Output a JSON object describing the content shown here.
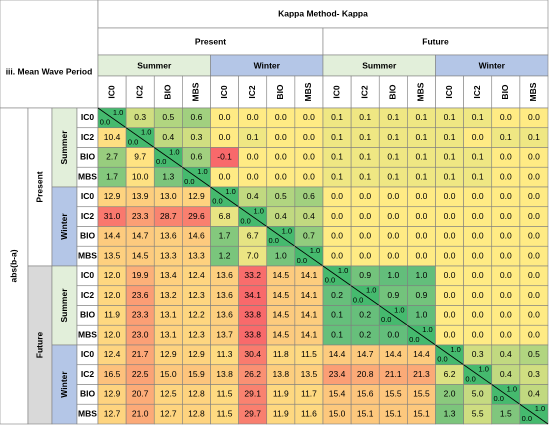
{
  "title": "iii. Mean Wave Period",
  "method": "Kappa Method- Kappa",
  "row_axis_label": "abs(b-a)",
  "column_periods": [
    "Present",
    "Future"
  ],
  "column_seasons": [
    "Summer",
    "Winter",
    "Summer",
    "Winter"
  ],
  "column_headers": [
    "IC0",
    "IC2",
    "BIO",
    "MBS",
    "IC0",
    "IC2",
    "BIO",
    "MBS",
    "IC0",
    "IC2",
    "BIO",
    "MBS",
    "IC0",
    "IC2",
    "BIO",
    "MBS"
  ],
  "row_periods": [
    "Present",
    "Future"
  ],
  "row_seasons": [
    "Summer",
    "Winter",
    "Summer",
    "Winter"
  ],
  "row_headers": [
    "IC0",
    "IC2",
    "BIO",
    "MBS",
    "IC0",
    "IC2",
    "BIO",
    "MBS",
    "IC0",
    "IC2",
    "BIO",
    "MBS",
    "IC0",
    "IC2",
    "BIO",
    "MBS"
  ],
  "table": {
    "rows": [
      [
        {
          "upper": "1.0",
          "lower": "0.0"
        },
        "0.3",
        "0.5",
        "0.6",
        "0.0",
        "0.0",
        "0.0",
        "0.0",
        "0.1",
        "0.1",
        "0.1",
        "0.1",
        "0.1",
        "0.1",
        "0.0",
        "0.0"
      ],
      [
        "10.4",
        {
          "upper": "1.0",
          "lower": "0.0"
        },
        "0.4",
        "0.3",
        "0.0",
        "0.1",
        "0.0",
        "0.0",
        "0.1",
        "0.1",
        "0.1",
        "0.1",
        "0.1",
        "0.0",
        "0.1",
        "0.1"
      ],
      [
        "2.7",
        "9.7",
        {
          "upper": "1.0",
          "lower": "0.0"
        },
        "0.6",
        "-0.1",
        "0.0",
        "0.0",
        "0.0",
        "0.1",
        "0.1",
        "0.1",
        "0.1",
        "0.1",
        "0.1",
        "0.0",
        "0.0"
      ],
      [
        "1.7",
        "10.0",
        "1.3",
        {
          "upper": "1.0",
          "lower": "0.0"
        },
        "0.0",
        "0.0",
        "0.0",
        "0.0",
        "0.1",
        "0.1",
        "0.1",
        "0.1",
        "0.1",
        "0.1",
        "0.0",
        "0.0"
      ],
      [
        "12.9",
        "13.9",
        "13.0",
        "12.9",
        {
          "upper": "1.0",
          "lower": "0.0"
        },
        "0.4",
        "0.5",
        "0.6",
        "0.0",
        "0.0",
        "0.0",
        "0.0",
        "0.0",
        "0.0",
        "0.0",
        "0.0"
      ],
      [
        "31.0",
        "23.3",
        "28.7",
        "29.6",
        "6.8",
        {
          "upper": "1.0",
          "lower": "0.0"
        },
        "0.4",
        "0.4",
        "0.0",
        "0.0",
        "0.0",
        "0.0",
        "0.0",
        "0.0",
        "0.0",
        "0.0"
      ],
      [
        "14.4",
        "14.7",
        "13.6",
        "14.6",
        "1.7",
        "6.7",
        {
          "upper": "1.0",
          "lower": "0.0"
        },
        "0.7",
        "0.0",
        "0.0",
        "0.0",
        "0.0",
        "0.0",
        "0.0",
        "0.0",
        "0.0"
      ],
      [
        "13.5",
        "14.5",
        "13.3",
        "13.3",
        "1.2",
        "7.0",
        "1.0",
        {
          "upper": "1.0",
          "lower": "0.0"
        },
        "0.0",
        "0.0",
        "0.0",
        "0.0",
        "0.0",
        "0.0",
        "0.0",
        "0.0"
      ],
      [
        "12.0",
        "19.9",
        "13.4",
        "12.4",
        "13.6",
        "33.2",
        "14.5",
        "14.1",
        {
          "upper": "1.0",
          "lower": "0.0"
        },
        "0.9",
        "1.0",
        "1.0",
        "0.0",
        "0.0",
        "0.0",
        "0.0"
      ],
      [
        "12.0",
        "23.6",
        "13.2",
        "12.3",
        "13.6",
        "34.1",
        "14.5",
        "14.1",
        "0.2",
        {
          "upper": "1.0",
          "lower": "0.0"
        },
        "0.9",
        "0.9",
        "0.0",
        "0.0",
        "0.0",
        "0.0"
      ],
      [
        "11.9",
        "23.3",
        "13.1",
        "12.2",
        "13.6",
        "33.8",
        "14.5",
        "14.1",
        "0.1",
        "0.2",
        {
          "upper": "1.0",
          "lower": "0.0"
        },
        "1.0",
        "0.0",
        "0.0",
        "0.0",
        "0.0"
      ],
      [
        "12.0",
        "23.0",
        "13.1",
        "12.3",
        "13.7",
        "33.8",
        "14.5",
        "14.1",
        "0.1",
        "0.2",
        "0.0",
        {
          "upper": "1.0",
          "lower": "0.0"
        },
        "0.0",
        "0.0",
        "0.0",
        "0.0"
      ],
      [
        "12.4",
        "21.7",
        "12.9",
        "12.9",
        "11.3",
        "30.4",
        "11.8",
        "11.5",
        "14.4",
        "14.7",
        "14.4",
        "14.4",
        {
          "upper": "1.0",
          "lower": "0.0"
        },
        "0.3",
        "0.4",
        "0.5"
      ],
      [
        "16.5",
        "22.5",
        "15.0",
        "15.9",
        "13.8",
        "26.2",
        "13.8",
        "13.5",
        "23.4",
        "20.8",
        "21.1",
        "21.3",
        "6.2",
        {
          "upper": "1.0",
          "lower": "0.0"
        },
        "0.4",
        "0.3"
      ],
      [
        "12.9",
        "20.7",
        "12.5",
        "12.8",
        "11.5",
        "29.1",
        "11.9",
        "11.7",
        "15.4",
        "15.6",
        "15.5",
        "15.5",
        "2.0",
        "5.0",
        {
          "upper": "1.0",
          "lower": "0.0"
        },
        "0.4"
      ],
      [
        "12.7",
        "21.0",
        "12.7",
        "12.8",
        "11.5",
        "29.7",
        "11.9",
        "11.6",
        "15.0",
        "15.1",
        "15.1",
        "15.1",
        "1.3",
        "5.5",
        "1.5",
        {
          "upper": "1.0",
          "lower": "0.0"
        }
      ]
    ]
  }
}
